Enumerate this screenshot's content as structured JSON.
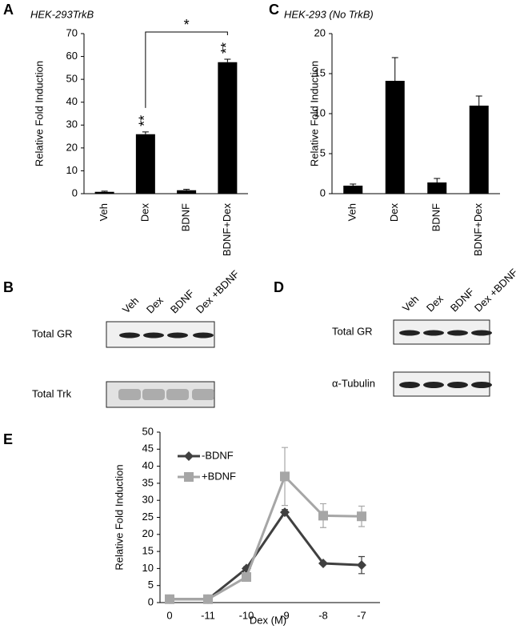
{
  "chart_data": [
    {
      "type": "bar",
      "panel": "A",
      "title": "HEK-293TrkB",
      "y_label": "Relative Fold Induction",
      "categories": [
        "Veh",
        "Dex",
        "BDNF",
        "BDNF+Dex"
      ],
      "values": [
        0.8,
        26,
        1.5,
        57.5
      ],
      "errors": [
        0.3,
        1,
        0.4,
        1.3
      ],
      "color": "#000000",
      "ylim": [
        0,
        70
      ],
      "yticks": [
        0,
        10,
        20,
        30,
        40,
        50,
        60,
        70
      ],
      "annotations": [
        "**",
        "**",
        "*"
      ]
    },
    {
      "type": "bar",
      "panel": "C",
      "title": "HEK-293 (No TrkB)",
      "y_label": "Relative Fold Induction",
      "categories": [
        "Veh",
        "Dex",
        "BDNF",
        "BDNF+Dex"
      ],
      "values": [
        1,
        14.1,
        1.4,
        11
      ],
      "errors": [
        0.2,
        2.9,
        0.5,
        1.2
      ],
      "color": "#000000",
      "ylim": [
        0,
        20
      ],
      "yticks": [
        0,
        5,
        10,
        15,
        20
      ]
    },
    {
      "type": "line",
      "panel": "E",
      "y_label": "Relative Fold Induction",
      "x_label": "Dex (M)",
      "categories": [
        "0",
        "-11",
        "-10",
        "-9",
        "-8",
        "-7"
      ],
      "ylim": [
        0,
        50
      ],
      "yticks": [
        0,
        5,
        10,
        15,
        20,
        25,
        30,
        35,
        40,
        45,
        50
      ],
      "legend": "upper left",
      "series": [
        {
          "name": "-BDNF",
          "color": "#404040",
          "marker": "diamond",
          "values": [
            1,
            1,
            10,
            26.5,
            11.5,
            11
          ],
          "errors": [
            0.2,
            0.2,
            0.5,
            0.8,
            0.3,
            2.5
          ]
        },
        {
          "name": "+BDNF",
          "color": "#a6a6a6",
          "marker": "square",
          "values": [
            1,
            1,
            7.5,
            37,
            25.5,
            25.3
          ],
          "errors": [
            0.3,
            0.3,
            0.5,
            8.5,
            3.5,
            3
          ]
        }
      ]
    }
  ],
  "blots": [
    {
      "panel": "B",
      "lanes": [
        "Veh",
        "Dex",
        "BDNF",
        "Dex +BDNF"
      ],
      "rows": [
        "Total GR",
        "Total Trk"
      ]
    },
    {
      "panel": "D",
      "lanes": [
        "Veh",
        "Dex",
        "BDNF",
        "Dex +BDNF"
      ],
      "rows": [
        "Total GR",
        "α-Tubulin"
      ]
    }
  ]
}
